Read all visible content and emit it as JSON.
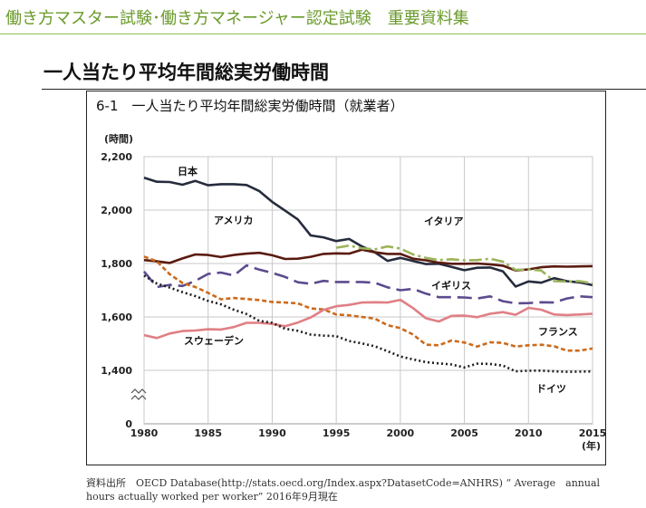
{
  "header": {
    "title": "働き方マスター試験･働き方マネージャー認定試験　重要資料集"
  },
  "page_title": "一人当たり平均年間総実労働時間",
  "colors": {
    "header_text": "#6a9a2a",
    "header_rule": "#8fbf4f"
  },
  "chart_data": {
    "type": "line",
    "title": "6-1　一人当たり平均年間総実労働時間（就業者）",
    "ylabel": "(時間)",
    "xlabel": "(年)",
    "xlim": [
      1980,
      2015
    ],
    "ylim": [
      0,
      2200
    ],
    "y_axis_break": "between 0 and 1,400",
    "xticks": [
      "1980",
      "1985",
      "1990",
      "1995",
      "2000",
      "2005",
      "2010",
      "2015"
    ],
    "yticks": [
      "0",
      "1,400",
      "1,600",
      "1,800",
      "2,000",
      "2,200"
    ],
    "grid": true,
    "series": [
      {
        "name": "日本",
        "color": "#262c3d",
        "dash": "solid",
        "x": [
          1980,
          1981,
          1982,
          1983,
          1984,
          1985,
          1986,
          1987,
          1988,
          1989,
          1990,
          1991,
          1992,
          1993,
          1994,
          1995,
          1996,
          1997,
          1998,
          1999,
          2000,
          2001,
          2002,
          2003,
          2004,
          2005,
          2006,
          2007,
          2008,
          2009,
          2010,
          2011,
          2012,
          2013,
          2014,
          2015
        ],
        "values": [
          2121,
          2106,
          2105,
          2095,
          2109,
          2093,
          2097,
          2097,
          2094,
          2071,
          2031,
          1998,
          1965,
          1905,
          1898,
          1884,
          1892,
          1864,
          1842,
          1810,
          1821,
          1809,
          1798,
          1799,
          1787,
          1775,
          1784,
          1785,
          1771,
          1714,
          1733,
          1728,
          1745,
          1734,
          1729,
          1719
        ]
      },
      {
        "name": "アメリカ",
        "color": "#5a1b10",
        "dash": "solid",
        "x": [
          1980,
          1981,
          1982,
          1983,
          1984,
          1985,
          1986,
          1987,
          1988,
          1989,
          1990,
          1991,
          1992,
          1993,
          1994,
          1995,
          1996,
          1997,
          1998,
          1999,
          2000,
          2001,
          2002,
          2003,
          2004,
          2005,
          2006,
          2007,
          2008,
          2009,
          2010,
          2011,
          2012,
          2013,
          2014,
          2015
        ],
        "values": [
          1813,
          1808,
          1802,
          1819,
          1834,
          1832,
          1824,
          1832,
          1837,
          1840,
          1831,
          1817,
          1818,
          1825,
          1836,
          1838,
          1837,
          1852,
          1842,
          1836,
          1836,
          1818,
          1812,
          1803,
          1799,
          1799,
          1800,
          1797,
          1792,
          1774,
          1778,
          1786,
          1789,
          1788,
          1789,
          1790
        ]
      },
      {
        "name": "イタリア",
        "color": "#9bb35a",
        "dash": "14 4 3 4",
        "x": [
          1995,
          1996,
          1997,
          1998,
          1999,
          2000,
          2001,
          2002,
          2003,
          2004,
          2005,
          2006,
          2007,
          2008,
          2009,
          2010,
          2011,
          2012,
          2013,
          2014,
          2015
        ],
        "values": [
          1859,
          1867,
          1857,
          1853,
          1864,
          1856,
          1834,
          1821,
          1813,
          1816,
          1812,
          1813,
          1818,
          1807,
          1776,
          1778,
          1774,
          1734,
          1733,
          1734,
          1725
        ]
      },
      {
        "name": "イギリス",
        "color": "#5c4b8e",
        "dash": "16 7",
        "x": [
          1980,
          1981,
          1982,
          1983,
          1984,
          1985,
          1986,
          1987,
          1988,
          1989,
          1990,
          1991,
          1992,
          1993,
          1994,
          1995,
          1996,
          1997,
          1998,
          1999,
          2000,
          2001,
          2002,
          2003,
          2004,
          2005,
          2006,
          2007,
          2008,
          2009,
          2010,
          2011,
          2012,
          2013,
          2014,
          2015
        ],
        "values": [
          1770,
          1712,
          1720,
          1716,
          1735,
          1761,
          1766,
          1755,
          1793,
          1777,
          1765,
          1750,
          1730,
          1724,
          1735,
          1731,
          1731,
          1731,
          1728,
          1711,
          1700,
          1705,
          1687,
          1674,
          1674,
          1673,
          1669,
          1677,
          1659,
          1651,
          1652,
          1655,
          1654,
          1669,
          1677,
          1674
        ]
      },
      {
        "name": "フランス",
        "color": "#cc6a1c",
        "dash": "5 3",
        "x": [
          1980,
          1981,
          1982,
          1983,
          1984,
          1985,
          1986,
          1987,
          1988,
          1989,
          1990,
          1991,
          1992,
          1993,
          1994,
          1995,
          1996,
          1997,
          1998,
          1999,
          2000,
          2001,
          2002,
          2003,
          2004,
          2005,
          2006,
          2007,
          2008,
          2009,
          2010,
          2011,
          2012,
          2013,
          2014,
          2015
        ],
        "values": [
          1826,
          1808,
          1760,
          1727,
          1712,
          1690,
          1666,
          1671,
          1667,
          1663,
          1656,
          1654,
          1651,
          1632,
          1628,
          1609,
          1606,
          1600,
          1594,
          1569,
          1558,
          1534,
          1496,
          1494,
          1512,
          1504,
          1489,
          1505,
          1503,
          1489,
          1494,
          1496,
          1490,
          1474,
          1474,
          1482
        ]
      },
      {
        "name": "スウェーデン",
        "color": "#e07f85",
        "dash": "solid",
        "x": [
          1980,
          1981,
          1982,
          1983,
          1984,
          1985,
          1986,
          1987,
          1988,
          1989,
          1990,
          1991,
          1992,
          1993,
          1994,
          1995,
          1996,
          1997,
          1998,
          1999,
          2000,
          2001,
          2002,
          2003,
          2004,
          2005,
          2006,
          2007,
          2008,
          2009,
          2010,
          2011,
          2012,
          2013,
          2014,
          2015
        ],
        "values": [
          1532,
          1521,
          1538,
          1547,
          1549,
          1554,
          1553,
          1562,
          1578,
          1578,
          1574,
          1565,
          1579,
          1598,
          1626,
          1640,
          1645,
          1654,
          1655,
          1654,
          1664,
          1633,
          1595,
          1583,
          1604,
          1605,
          1599,
          1612,
          1618,
          1608,
          1634,
          1627,
          1609,
          1607,
          1609,
          1612
        ]
      },
      {
        "name": "ドイツ",
        "color": "#1e1e1e",
        "dash": "2 3",
        "x": [
          1980,
          1981,
          1982,
          1983,
          1984,
          1985,
          1986,
          1987,
          1988,
          1989,
          1990,
          1991,
          1992,
          1993,
          1994,
          1995,
          1996,
          1997,
          1998,
          1999,
          2000,
          2001,
          2002,
          2003,
          2004,
          2005,
          2006,
          2007,
          2008,
          2009,
          2010,
          2011,
          2012,
          2013,
          2014,
          2015
        ],
        "values": [
          1755,
          1725,
          1710,
          1693,
          1678,
          1660,
          1647,
          1627,
          1611,
          1585,
          1578,
          1556,
          1548,
          1534,
          1530,
          1528,
          1510,
          1501,
          1490,
          1472,
          1452,
          1441,
          1431,
          1426,
          1422,
          1411,
          1425,
          1424,
          1418,
          1373,
          1390,
          1393,
          1375,
          1363,
          1366,
          1371
        ]
      }
    ]
  },
  "source": {
    "line1": "資料出所　OECD Database(http://stats.oecd.org/Index.aspx?DatasetCode=ANHRS) “ Average　annual",
    "line2": "hours actually worked per worker” 2016年9月現在"
  }
}
